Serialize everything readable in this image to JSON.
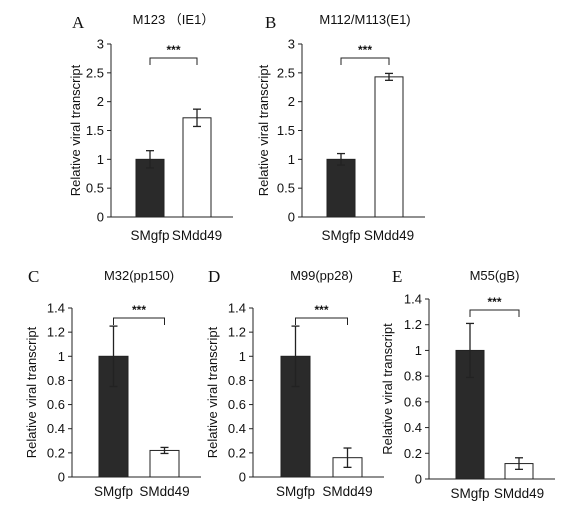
{
  "chart_data": [
    {
      "type": "bar",
      "panel": "A",
      "title": "M123 （IE1）",
      "ylabel": "Relative  viral transcript",
      "categories": [
        "SMgfp",
        "SMdd49"
      ],
      "values": [
        1.0,
        1.72
      ],
      "errors": [
        0.15,
        0.15
      ],
      "fills": [
        "#2a2a2a",
        "#ffffff"
      ],
      "ylim": [
        0,
        3
      ],
      "yticks": [
        "0",
        "0.5",
        "1",
        "1.5",
        "2",
        "2.5",
        "3"
      ],
      "significance": "***"
    },
    {
      "type": "bar",
      "panel": "B",
      "title": "M112/M113(E1)",
      "ylabel": "Relative  viral transcript",
      "categories": [
        "SMgfp",
        "SMdd49"
      ],
      "values": [
        1.0,
        2.43
      ],
      "errors": [
        0.1,
        0.06
      ],
      "fills": [
        "#2a2a2a",
        "#ffffff"
      ],
      "ylim": [
        0,
        3
      ],
      "yticks": [
        "0",
        "0.5",
        "1",
        "1.5",
        "2",
        "2.5",
        "3"
      ],
      "significance": "***"
    },
    {
      "type": "bar",
      "panel": "C",
      "title": "M32(pp150)",
      "ylabel": "Relative  viral transcript",
      "categories": [
        "SMgfp",
        "SMdd49"
      ],
      "values": [
        1.0,
        0.22
      ],
      "errors": [
        0.25,
        0.025
      ],
      "fills": [
        "#2a2a2a",
        "#ffffff"
      ],
      "ylim": [
        0,
        1.4
      ],
      "yticks": [
        "0",
        "0.2",
        "0.4",
        "0.6",
        "0.8",
        "1",
        "1.2",
        "1.4"
      ],
      "significance": "***"
    },
    {
      "type": "bar",
      "panel": "D",
      "title": "M99(pp28)",
      "ylabel": "Relative  viral transcript",
      "categories": [
        "SMgfp",
        "SMdd49"
      ],
      "values": [
        1.0,
        0.16
      ],
      "errors": [
        0.25,
        0.08
      ],
      "fills": [
        "#2a2a2a",
        "#ffffff"
      ],
      "ylim": [
        0,
        1.4
      ],
      "yticks": [
        "0",
        "0.2",
        "0.4",
        "0.6",
        "0.8",
        "1",
        "1.2",
        "1.4"
      ],
      "significance": "***"
    },
    {
      "type": "bar",
      "panel": "E",
      "title": "M55(gB)",
      "ylabel": "Relative  viral transcript",
      "categories": [
        "SMgfp",
        "SMdd49"
      ],
      "values": [
        1.0,
        0.12
      ],
      "errors": [
        0.21,
        0.045
      ],
      "fills": [
        "#2a2a2a",
        "#ffffff"
      ],
      "ylim": [
        0,
        1.4
      ],
      "yticks": [
        "0",
        "0.2",
        "0.4",
        "0.6",
        "0.8",
        "1",
        "1.2",
        "1.4"
      ],
      "significance": "***"
    }
  ]
}
